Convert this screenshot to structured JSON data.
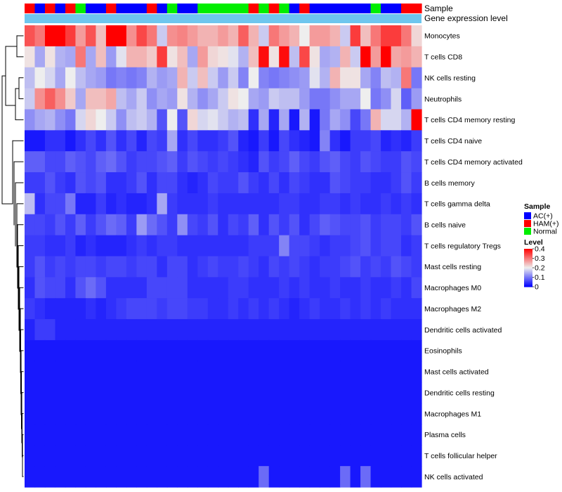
{
  "chart_data": {
    "type": "heatmap",
    "title": "",
    "annotation_tracks": [
      "Sample",
      "Gene expression level"
    ],
    "legend_sample": {
      "title": "Sample",
      "entries": [
        {
          "label": "AC(+)",
          "color": "#0000ff"
        },
        {
          "label": "HAM(+)",
          "color": "#ff0000"
        },
        {
          "label": "Normal",
          "color": "#00ee00"
        }
      ]
    },
    "legend_level": {
      "title": "Level",
      "ticks": [
        "0.4",
        "0.3",
        "0.2",
        "0.1",
        "0"
      ],
      "range": [
        0,
        0.4
      ],
      "colors": {
        "low": "#0000ff",
        "mid": "#eeeeee",
        "high": "#ff0000",
        "midpoint": 0.2
      }
    },
    "gene_expression_color": "#6ec6ee",
    "sample_groups": [
      "HAM(+)",
      "AC(+)",
      "HAM(+)",
      "AC(+)",
      "HAM(+)",
      "Normal",
      "AC(+)",
      "AC(+)",
      "HAM(+)",
      "AC(+)",
      "AC(+)",
      "AC(+)",
      "HAM(+)",
      "AC(+)",
      "Normal",
      "AC(+)",
      "AC(+)",
      "Normal",
      "Normal",
      "Normal",
      "Normal",
      "Normal",
      "HAM(+)",
      "Normal",
      "HAM(+)",
      "Normal",
      "AC(+)",
      "HAM(+)",
      "AC(+)",
      "AC(+)",
      "AC(+)",
      "AC(+)",
      "AC(+)",
      "AC(+)",
      "Normal",
      "AC(+)",
      "AC(+)",
      "HAM(+)",
      "HAM(+)"
    ],
    "rows": [
      "Monocytes",
      "T cells CD8",
      "NK cells resting",
      "Neutrophils",
      "T cells CD4 memory resting",
      "T cells CD4 naive",
      "T cells CD4 memory activated",
      "B cells memory",
      "T cells gamma delta",
      "B cells naive",
      "T cells regulatory  Tregs",
      "Mast cells resting",
      "Macrophages M0",
      "Macrophages M2",
      "Dendritic cells activated",
      "Eosinophils",
      "Mast cells activated",
      "Dendritic cells resting",
      "Macrophages M1",
      "Plasma cells",
      "T cells follicular helper",
      "NK cells activated"
    ],
    "values": [
      [
        0.33,
        0.3,
        0.4,
        0.4,
        0.35,
        0.27,
        0.33,
        0.24,
        0.4,
        0.4,
        0.28,
        0.34,
        0.3,
        0.17,
        0.28,
        0.29,
        0.27,
        0.25,
        0.25,
        0.27,
        0.25,
        0.32,
        0.25,
        0.17,
        0.3,
        0.27,
        0.25,
        0.2,
        0.27,
        0.27,
        0.25,
        0.17,
        0.35,
        0.24,
        0.3,
        0.35,
        0.35,
        0.3,
        0.22
      ],
      [
        0.21,
        0.14,
        0.21,
        0.15,
        0.14,
        0.3,
        0.14,
        0.24,
        0.13,
        0.19,
        0.25,
        0.25,
        0.23,
        0.35,
        0.21,
        0.24,
        0.14,
        0.27,
        0.22,
        0.21,
        0.19,
        0.15,
        0.24,
        0.39,
        0.21,
        0.39,
        0.16,
        0.34,
        0.21,
        0.14,
        0.15,
        0.25,
        0.17,
        0.4,
        0.27,
        0.4,
        0.26,
        0.27,
        0.25
      ],
      [
        0.16,
        0.2,
        0.18,
        0.14,
        0.2,
        0.16,
        0.14,
        0.13,
        0.1,
        0.11,
        0.1,
        0.11,
        0.15,
        0.13,
        0.14,
        0.25,
        0.17,
        0.24,
        0.17,
        0.13,
        0.17,
        0.11,
        0.2,
        0.11,
        0.1,
        0.11,
        0.12,
        0.13,
        0.19,
        0.15,
        0.25,
        0.21,
        0.21,
        0.14,
        0.11,
        0.16,
        0.15,
        0.3,
        0.1
      ],
      [
        0.17,
        0.28,
        0.32,
        0.28,
        0.23,
        0.14,
        0.24,
        0.24,
        0.26,
        0.16,
        0.14,
        0.17,
        0.12,
        0.14,
        0.13,
        0.21,
        0.15,
        0.12,
        0.14,
        0.17,
        0.21,
        0.2,
        0.14,
        0.13,
        0.17,
        0.16,
        0.16,
        0.13,
        0.1,
        0.1,
        0.12,
        0.14,
        0.14,
        0.2,
        0.1,
        0.12,
        0.18,
        0.08,
        0.13
      ],
      [
        0.12,
        0.14,
        0.15,
        0.12,
        0.1,
        0.18,
        0.22,
        0.2,
        0.17,
        0.12,
        0.16,
        0.17,
        0.15,
        0.07,
        0.2,
        0.07,
        0.22,
        0.18,
        0.19,
        0.17,
        0.15,
        0.16,
        0.04,
        0.14,
        0.03,
        0.14,
        0.02,
        0.15,
        0.02,
        0.1,
        0.14,
        0.12,
        0.06,
        0.1,
        0.25,
        0.18,
        0.18,
        0.15,
        0.4
      ],
      [
        0.02,
        0.02,
        0.04,
        0.04,
        0.02,
        0.04,
        0.06,
        0.04,
        0.07,
        0.04,
        0.06,
        0.03,
        0.06,
        0.05,
        0.14,
        0.04,
        0.06,
        0.04,
        0.04,
        0.05,
        0.07,
        0.03,
        0.02,
        0.05,
        0.02,
        0.06,
        0.04,
        0.03,
        0.02,
        0.11,
        0.04,
        0.02,
        0.05,
        0.05,
        0.06,
        0.03,
        0.04,
        0.03,
        0.05
      ],
      [
        0.08,
        0.08,
        0.06,
        0.06,
        0.08,
        0.07,
        0.06,
        0.08,
        0.09,
        0.07,
        0.05,
        0.06,
        0.06,
        0.07,
        0.08,
        0.05,
        0.07,
        0.06,
        0.05,
        0.06,
        0.05,
        0.04,
        0.03,
        0.07,
        0.05,
        0.06,
        0.08,
        0.06,
        0.05,
        0.07,
        0.08,
        0.06,
        0.05,
        0.07,
        0.06,
        0.05,
        0.05,
        0.07,
        0.06
      ],
      [
        0.05,
        0.05,
        0.07,
        0.05,
        0.04,
        0.07,
        0.06,
        0.07,
        0.04,
        0.04,
        0.05,
        0.07,
        0.04,
        0.06,
        0.06,
        0.04,
        0.03,
        0.04,
        0.06,
        0.05,
        0.05,
        0.07,
        0.05,
        0.04,
        0.06,
        0.04,
        0.06,
        0.05,
        0.04,
        0.04,
        0.07,
        0.06,
        0.05,
        0.05,
        0.04,
        0.04,
        0.05,
        0.07,
        0.05
      ],
      [
        0.16,
        0.04,
        0.06,
        0.06,
        0.1,
        0.03,
        0.03,
        0.05,
        0.03,
        0.04,
        0.03,
        0.03,
        0.04,
        0.14,
        0.05,
        0.04,
        0.04,
        0.04,
        0.05,
        0.04,
        0.04,
        0.04,
        0.04,
        0.04,
        0.04,
        0.05,
        0.05,
        0.04,
        0.04,
        0.05,
        0.05,
        0.04,
        0.05,
        0.04,
        0.04,
        0.05,
        0.04,
        0.05,
        0.04
      ],
      [
        0.06,
        0.06,
        0.05,
        0.07,
        0.05,
        0.08,
        0.05,
        0.07,
        0.09,
        0.08,
        0.05,
        0.13,
        0.09,
        0.07,
        0.05,
        0.12,
        0.06,
        0.05,
        0.07,
        0.04,
        0.06,
        0.05,
        0.08,
        0.04,
        0.07,
        0.05,
        0.07,
        0.04,
        0.06,
        0.08,
        0.07,
        0.06,
        0.06,
        0.07,
        0.05,
        0.06,
        0.06,
        0.05,
        0.07
      ],
      [
        0.05,
        0.05,
        0.04,
        0.04,
        0.05,
        0.03,
        0.04,
        0.03,
        0.03,
        0.03,
        0.04,
        0.05,
        0.04,
        0.05,
        0.05,
        0.04,
        0.04,
        0.04,
        0.04,
        0.04,
        0.04,
        0.04,
        0.05,
        0.05,
        0.05,
        0.11,
        0.06,
        0.06,
        0.05,
        0.04,
        0.05,
        0.05,
        0.06,
        0.07,
        0.05,
        0.06,
        0.06,
        0.04,
        0.05
      ],
      [
        0.05,
        0.07,
        0.05,
        0.06,
        0.05,
        0.06,
        0.06,
        0.05,
        0.06,
        0.06,
        0.05,
        0.06,
        0.06,
        0.04,
        0.06,
        0.06,
        0.04,
        0.05,
        0.06,
        0.05,
        0.05,
        0.06,
        0.05,
        0.04,
        0.06,
        0.05,
        0.06,
        0.05,
        0.04,
        0.05,
        0.05,
        0.06,
        0.07,
        0.05,
        0.06,
        0.05,
        0.07,
        0.06,
        0.05
      ],
      [
        0.04,
        0.07,
        0.06,
        0.06,
        0.04,
        0.07,
        0.09,
        0.07,
        0.04,
        0.04,
        0.04,
        0.04,
        0.06,
        0.06,
        0.06,
        0.06,
        0.04,
        0.04,
        0.04,
        0.04,
        0.05,
        0.05,
        0.04,
        0.04,
        0.04,
        0.05,
        0.04,
        0.05,
        0.04,
        0.04,
        0.05,
        0.04,
        0.04,
        0.05,
        0.04,
        0.04,
        0.05,
        0.04,
        0.06
      ],
      [
        0.05,
        0.04,
        0.03,
        0.03,
        0.03,
        0.03,
        0.04,
        0.03,
        0.04,
        0.05,
        0.06,
        0.06,
        0.06,
        0.05,
        0.06,
        0.06,
        0.05,
        0.05,
        0.04,
        0.04,
        0.05,
        0.04,
        0.05,
        0.04,
        0.05,
        0.04,
        0.03,
        0.04,
        0.05,
        0.04,
        0.04,
        0.05,
        0.04,
        0.05,
        0.04,
        0.05,
        0.04,
        0.04,
        0.04
      ],
      [
        0.03,
        0.05,
        0.05,
        0.03,
        0.03,
        0.03,
        0.03,
        0.03,
        0.03,
        0.03,
        0.03,
        0.03,
        0.03,
        0.03,
        0.03,
        0.03,
        0.03,
        0.03,
        0.03,
        0.03,
        0.03,
        0.03,
        0.03,
        0.03,
        0.03,
        0.03,
        0.03,
        0.03,
        0.03,
        0.03,
        0.03,
        0.03,
        0.03,
        0.03,
        0.03,
        0.03,
        0.03,
        0.03,
        0.03
      ],
      [
        0.02,
        0.02,
        0.02,
        0.02,
        0.02,
        0.02,
        0.02,
        0.02,
        0.02,
        0.02,
        0.02,
        0.02,
        0.02,
        0.02,
        0.02,
        0.02,
        0.02,
        0.02,
        0.02,
        0.02,
        0.02,
        0.02,
        0.02,
        0.02,
        0.02,
        0.02,
        0.02,
        0.02,
        0.02,
        0.02,
        0.02,
        0.02,
        0.02,
        0.02,
        0.02,
        0.02,
        0.02,
        0.02,
        0.02
      ],
      [
        0.02,
        0.02,
        0.02,
        0.02,
        0.02,
        0.02,
        0.02,
        0.02,
        0.02,
        0.02,
        0.02,
        0.02,
        0.02,
        0.02,
        0.02,
        0.02,
        0.02,
        0.02,
        0.02,
        0.02,
        0.02,
        0.02,
        0.02,
        0.02,
        0.02,
        0.02,
        0.02,
        0.02,
        0.02,
        0.02,
        0.02,
        0.02,
        0.02,
        0.02,
        0.02,
        0.02,
        0.02,
        0.02,
        0.02
      ],
      [
        0.02,
        0.02,
        0.02,
        0.02,
        0.02,
        0.02,
        0.02,
        0.02,
        0.02,
        0.02,
        0.02,
        0.02,
        0.02,
        0.02,
        0.02,
        0.02,
        0.02,
        0.02,
        0.02,
        0.02,
        0.02,
        0.02,
        0.02,
        0.02,
        0.02,
        0.02,
        0.02,
        0.02,
        0.02,
        0.02,
        0.02,
        0.02,
        0.02,
        0.02,
        0.02,
        0.02,
        0.02,
        0.02,
        0.02
      ],
      [
        0.02,
        0.02,
        0.02,
        0.02,
        0.02,
        0.02,
        0.02,
        0.02,
        0.02,
        0.02,
        0.02,
        0.02,
        0.02,
        0.02,
        0.02,
        0.02,
        0.02,
        0.02,
        0.02,
        0.02,
        0.02,
        0.02,
        0.02,
        0.02,
        0.02,
        0.02,
        0.02,
        0.02,
        0.02,
        0.02,
        0.02,
        0.02,
        0.02,
        0.02,
        0.02,
        0.02,
        0.02,
        0.02,
        0.02
      ],
      [
        0.02,
        0.02,
        0.02,
        0.02,
        0.02,
        0.02,
        0.02,
        0.02,
        0.02,
        0.02,
        0.02,
        0.02,
        0.02,
        0.02,
        0.02,
        0.02,
        0.02,
        0.02,
        0.02,
        0.02,
        0.02,
        0.02,
        0.02,
        0.02,
        0.02,
        0.02,
        0.02,
        0.02,
        0.02,
        0.02,
        0.02,
        0.02,
        0.02,
        0.02,
        0.02,
        0.02,
        0.02,
        0.02,
        0.02
      ],
      [
        0.02,
        0.02,
        0.02,
        0.02,
        0.02,
        0.02,
        0.02,
        0.02,
        0.02,
        0.02,
        0.02,
        0.02,
        0.02,
        0.02,
        0.02,
        0.02,
        0.02,
        0.02,
        0.02,
        0.02,
        0.02,
        0.02,
        0.02,
        0.02,
        0.02,
        0.02,
        0.02,
        0.02,
        0.02,
        0.02,
        0.02,
        0.02,
        0.02,
        0.02,
        0.02,
        0.02,
        0.02,
        0.02,
        0.02
      ],
      [
        0.02,
        0.02,
        0.02,
        0.02,
        0.02,
        0.02,
        0.02,
        0.02,
        0.02,
        0.02,
        0.02,
        0.02,
        0.02,
        0.02,
        0.02,
        0.02,
        0.02,
        0.02,
        0.02,
        0.02,
        0.02,
        0.02,
        0.02,
        0.09,
        0.02,
        0.02,
        0.02,
        0.02,
        0.02,
        0.02,
        0.02,
        0.09,
        0.02,
        0.09,
        0.02,
        0.02,
        0.02,
        0.02,
        0.02
      ]
    ]
  }
}
